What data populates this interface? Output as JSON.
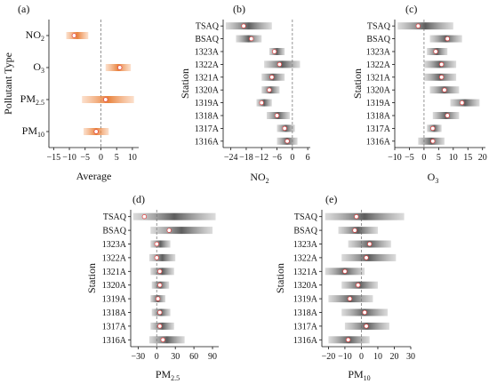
{
  "colors": {
    "orange_fill": "#f5a66f",
    "orange_dark": "#e8823d",
    "gray_fill": "#9a9a9a",
    "gray_dark": "#5e5e5e",
    "point_stroke": "#e23b3b",
    "zero_line": "#8a8a8a"
  },
  "chart_data": [
    {
      "panel": "(a)",
      "type": "interval",
      "xlabel": "Average",
      "ylabel": "Pollutant Type",
      "categories": [
        "NO2",
        "O3",
        "PM2.5",
        "PM10"
      ],
      "category_labels": [
        {
          "base": "NO",
          "sub": "2"
        },
        {
          "base": "O",
          "sub": "3"
        },
        {
          "base": "PM",
          "sub": "2.5"
        },
        {
          "base": "PM",
          "sub": "10"
        }
      ],
      "low": [
        -11,
        1.5,
        -6,
        -5.5
      ],
      "high": [
        -4,
        9.5,
        10.5,
        2.5
      ],
      "mean": [
        -8.5,
        6,
        1.5,
        -1.5
      ],
      "xlim": [
        -16.5,
        12
      ],
      "xticks": [
        -15,
        -10,
        -5,
        0,
        5,
        10
      ],
      "xtick_labels": [
        "−15",
        "−10",
        "−5",
        "0",
        "5",
        "10"
      ]
    },
    {
      "panel": "(b)",
      "type": "interval",
      "xlabel": "NO2",
      "xlabel_parts": {
        "base": "NO",
        "sub": "2"
      },
      "ylabel": "Station",
      "categories": [
        "TSAQ",
        "BSAQ",
        "1323A",
        "1322A",
        "1321A",
        "1320A",
        "1319A",
        "1318A",
        "1317A",
        "1316A"
      ],
      "low": [
        -26,
        -22,
        -9,
        -11,
        -12,
        -12,
        -14,
        -10,
        -6,
        -6
      ],
      "high": [
        -8,
        -12,
        -3,
        3,
        -3,
        -5,
        -8,
        -1,
        1,
        2
      ],
      "mean": [
        -19,
        -16,
        -7,
        -5,
        -8,
        -9,
        -12,
        -6,
        -3,
        -2
      ],
      "xlim": [
        -27,
        7
      ],
      "xticks": [
        -24,
        -18,
        -12,
        -6,
        0,
        6
      ],
      "xtick_labels": [
        "−24",
        "−18",
        "−12",
        "−6",
        "0",
        "6"
      ]
    },
    {
      "panel": "(c)",
      "type": "interval",
      "xlabel": "O3",
      "xlabel_parts": {
        "base": "O",
        "sub": "3"
      },
      "ylabel": "Station",
      "categories": [
        "TSAQ",
        "BSAQ",
        "1323A",
        "1322A",
        "1321A",
        "1320A",
        "1319A",
        "1318A",
        "1317A",
        "1316A"
      ],
      "low": [
        -9,
        2,
        1,
        0,
        0,
        2,
        9,
        3,
        1,
        -2
      ],
      "high": [
        10,
        13,
        8,
        11,
        11,
        12,
        19,
        12,
        6,
        7
      ],
      "mean": [
        -2,
        8,
        4,
        6,
        6,
        7,
        13,
        8,
        3,
        3
      ],
      "xlim": [
        -10,
        21
      ],
      "xticks": [
        -10,
        -5,
        0,
        5,
        10,
        15,
        20
      ],
      "xtick_labels": [
        "−10",
        "−5",
        "0",
        "5",
        "10",
        "15",
        "20"
      ]
    },
    {
      "panel": "(d)",
      "type": "interval",
      "xlabel": "PM2.5",
      "xlabel_parts": {
        "base": "PM",
        "sub": "2.5"
      },
      "ylabel": "Station",
      "categories": [
        "TSAQ",
        "BSAQ",
        "1323A",
        "1322A",
        "1321A",
        "1320A",
        "1319A",
        "1318A",
        "1317A",
        "1316A"
      ],
      "low": [
        -38,
        -10,
        -10,
        -12,
        -10,
        -8,
        -10,
        -8,
        -10,
        -12
      ],
      "high": [
        95,
        90,
        22,
        30,
        28,
        20,
        14,
        22,
        28,
        45
      ],
      "mean": [
        -20,
        20,
        0,
        0,
        5,
        5,
        2,
        5,
        5,
        10
      ],
      "xlim": [
        -42,
        100
      ],
      "xticks": [
        -30,
        0,
        30,
        60,
        90
      ],
      "xtick_labels": [
        "−30",
        "0",
        "30",
        "60",
        "90"
      ]
    },
    {
      "panel": "(e)",
      "type": "interval",
      "xlabel": "PM10",
      "xlabel_parts": {
        "base": "PM",
        "sub": "10"
      },
      "ylabel": "Station",
      "categories": [
        "TSAQ",
        "BSAQ",
        "1323A",
        "1322A",
        "1321A",
        "1320A",
        "1319A",
        "1318A",
        "1317A",
        "1316A"
      ],
      "low": [
        -22,
        -14,
        -8,
        -12,
        -22,
        -12,
        -20,
        -12,
        -10,
        -20
      ],
      "high": [
        26,
        10,
        18,
        21,
        2,
        10,
        7,
        16,
        17,
        5
      ],
      "mean": [
        -3,
        -4,
        5,
        3,
        -10,
        -2,
        -7,
        2,
        3,
        -8
      ],
      "xlim": [
        -24,
        30
      ],
      "xticks": [
        -20,
        -10,
        0,
        10,
        20,
        30
      ],
      "xtick_labels": [
        "−20",
        "−10",
        "0",
        "10",
        "20",
        "30"
      ]
    }
  ]
}
